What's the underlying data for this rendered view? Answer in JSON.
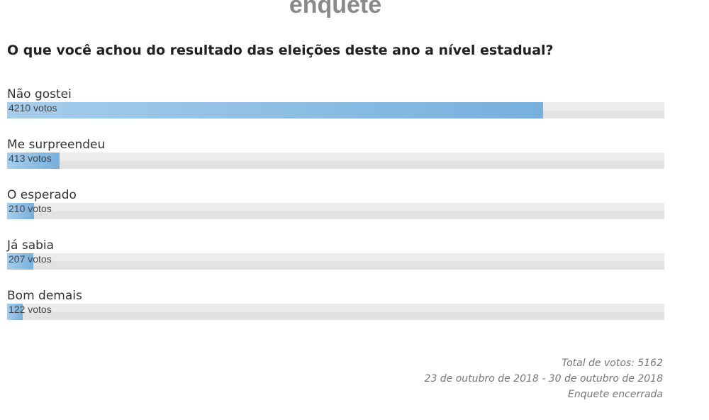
{
  "header": {
    "title": "enquete"
  },
  "poll": {
    "question": "O que você achou do resultado das eleições deste ano a nível estadual?",
    "options": [
      {
        "label": "Não gostei",
        "votes": 4210,
        "votes_label": "4210 votos"
      },
      {
        "label": "Me surpreendeu",
        "votes": 413,
        "votes_label": "413 votos"
      },
      {
        "label": "O esperado",
        "votes": 210,
        "votes_label": "210 votos"
      },
      {
        "label": "Já sabia",
        "votes": 207,
        "votes_label": "207 votos"
      },
      {
        "label": "Bom demais",
        "votes": 122,
        "votes_label": "122 votos"
      }
    ]
  },
  "footer": {
    "total": "Total de votos: 5162",
    "period": "23 de outubro de 2018 - 30 de outubro de 2018",
    "status": "Enquete encerrada"
  }
}
